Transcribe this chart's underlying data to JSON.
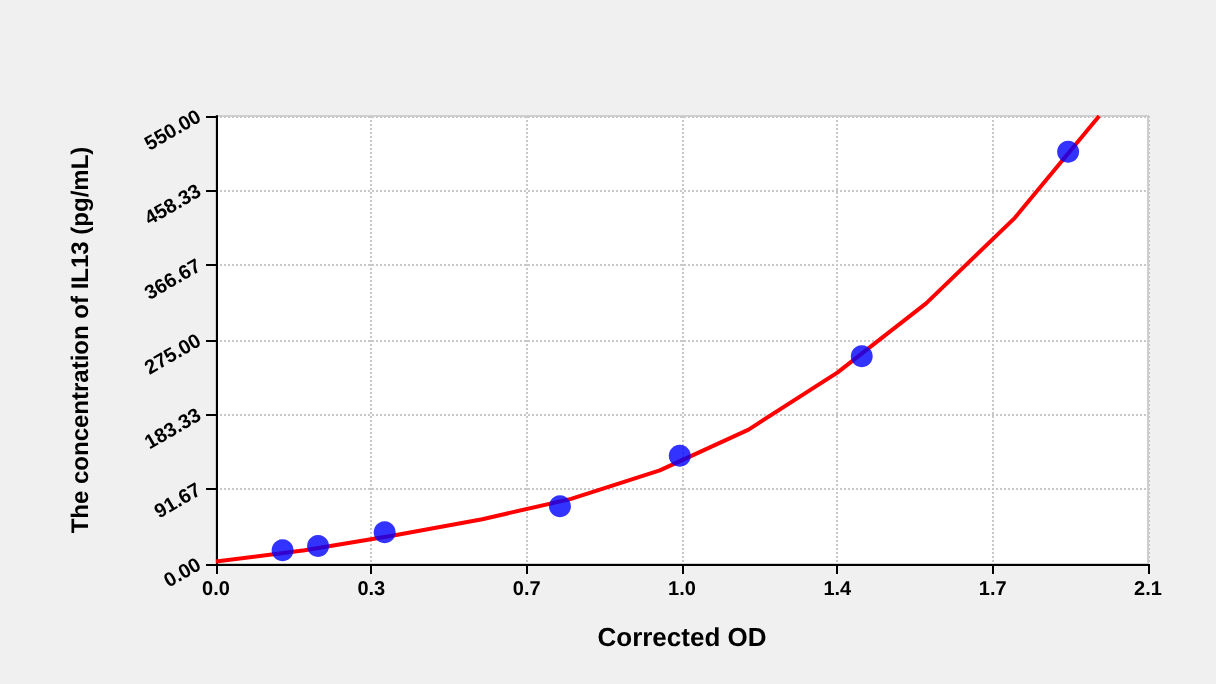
{
  "chart_data": {
    "type": "scatter",
    "xlabel": "Corrected OD",
    "ylabel": "The concentration of IL13 (pg/mL)",
    "xlim": [
      0,
      2.1
    ],
    "xticks": [
      {
        "value": 0,
        "label": "0.0"
      },
      {
        "value": 0.35,
        "label": "0.3"
      },
      0.7,
      {
        "value": 1.05,
        "label": "1.0"
      },
      1.4,
      {
        "value": 1.75,
        "label": "1.7"
      },
      2.1
    ],
    "ylim": [
      0,
      550
    ],
    "yticks": [
      {
        "value": 0,
        "label": "0.00"
      },
      91.67,
      183.33,
      {
        "value": 275,
        "label": "275.00"
      },
      366.67,
      458.33,
      {
        "value": 550,
        "label": "550.00"
      }
    ],
    "grid": true,
    "marker": "circle",
    "series": [
      {
        "type": "line",
        "color": "#ff0000",
        "marker": "none",
        "x": [
          0,
          0.2,
          0.4,
          0.6,
          0.8,
          1.0,
          1.2,
          1.4,
          1.6,
          1.8,
          1.99
        ],
        "values": [
          3,
          17,
          35,
          55,
          80,
          115,
          165,
          235,
          320,
          425,
          550
        ]
      },
      {
        "color": "#0000ff",
        "x": [
          0.15,
          0.23,
          0.38,
          0.775,
          1.045,
          1.455,
          1.92
        ],
        "values": [
          17,
          22,
          39,
          71,
          133,
          255,
          506
        ]
      }
    ]
  }
}
